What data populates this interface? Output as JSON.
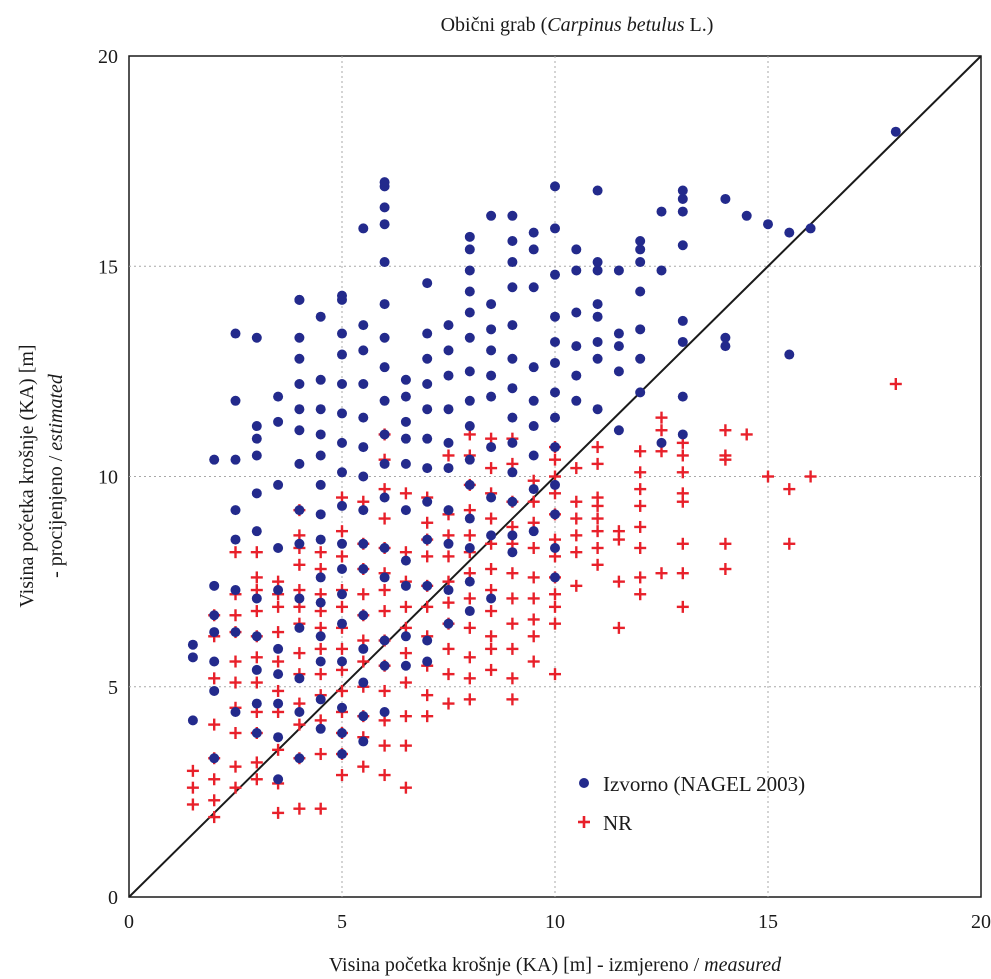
{
  "chart_data": {
    "type": "scatter",
    "title": {
      "plain": "Obični grab (",
      "italic": "Carpinus betulus",
      "suffix": " L.)"
    },
    "xlabel": {
      "plain": "Visina početka krošnje (KA) [m] - izmjereno / ",
      "italic": "measured"
    },
    "ylabel": {
      "line1": "Visina početka krošnje (KA) [m]",
      "line2_plain": "- procijenjeno / ",
      "line2_italic": "estimated"
    },
    "xlim": [
      0,
      20
    ],
    "ylim": [
      0,
      20
    ],
    "xticks": [
      "0",
      "5",
      "10",
      "15",
      "20"
    ],
    "yticks": [
      "0",
      "5",
      "10",
      "15",
      "20"
    ],
    "grid": true,
    "legend_position": "bottom-right",
    "reference_line": {
      "from": [
        0,
        0
      ],
      "to": [
        20,
        20
      ],
      "color": "#1a1a1a"
    },
    "series": [
      {
        "name": "Izvorno (NAGEL 2003)",
        "marker": "circle",
        "color": "#232a8c",
        "x": [
          1.5,
          1.5,
          1.5,
          2,
          2,
          2,
          2,
          2,
          2,
          2,
          2.5,
          2.5,
          2.5,
          2.5,
          2.5,
          2.5,
          2.5,
          2.5,
          3,
          3,
          3,
          3,
          3,
          3,
          3,
          3,
          3,
          3,
          3,
          3.5,
          3.5,
          3.5,
          3.5,
          3.5,
          3.5,
          3.5,
          3.5,
          3.5,
          3.5,
          4,
          4,
          4,
          4,
          4,
          4,
          4,
          4,
          4,
          4,
          4,
          4,
          4,
          4,
          4,
          4.5,
          4.5,
          4.5,
          4.5,
          4.5,
          4.5,
          4.5,
          4.5,
          4.5,
          4.5,
          4.5,
          4.5,
          4.5,
          4.5,
          5,
          5,
          5,
          5,
          5,
          5,
          5,
          5,
          5,
          5,
          5,
          5,
          5,
          5,
          5,
          5,
          5,
          5.5,
          5.5,
          5.5,
          5.5,
          5.5,
          5.5,
          5.5,
          5.5,
          5.5,
          5.5,
          5.5,
          5.5,
          5.5,
          5.5,
          5.5,
          6,
          6,
          6,
          6,
          6,
          6,
          6,
          6,
          6,
          6,
          6,
          6,
          6,
          6,
          6,
          6,
          6,
          6.5,
          6.5,
          6.5,
          6.5,
          6.5,
          6.5,
          6.5,
          6.5,
          6.5,
          6.5,
          7,
          7,
          7,
          7,
          7,
          7,
          7,
          7,
          7,
          7,
          7,
          7,
          7.5,
          7.5,
          7.5,
          7.5,
          7.5,
          7.5,
          7.5,
          7.5,
          7.5,
          7.5,
          8,
          8,
          8,
          8,
          8,
          8,
          8,
          8,
          8,
          8,
          8,
          8,
          8,
          8,
          8,
          8.5,
          8.5,
          8.5,
          8.5,
          8.5,
          8.5,
          8.5,
          8.5,
          8.5,
          8.5,
          9,
          9,
          9,
          9,
          9,
          9,
          9,
          9,
          9,
          9,
          9,
          9,
          9,
          9.5,
          9.5,
          9.5,
          9.5,
          9.5,
          9.5,
          9.5,
          9.5,
          9.5,
          10,
          10,
          10,
          10,
          10,
          10,
          10,
          10,
          10,
          10,
          10,
          10,
          10,
          10.5,
          10.5,
          10.5,
          10.5,
          10.5,
          10.5,
          11,
          11,
          11,
          11,
          11,
          11,
          11,
          11,
          11.5,
          11.5,
          11.5,
          11.5,
          11.5,
          12,
          12,
          12,
          12,
          12,
          12,
          12,
          12.5,
          12.5,
          12.5,
          13,
          13,
          13,
          13,
          13,
          13,
          13,
          13,
          14,
          14,
          14,
          14.5,
          15,
          15.5,
          15.5,
          16,
          18
        ],
        "y": [
          4.2,
          5.7,
          6,
          3.3,
          4.9,
          5.6,
          6.3,
          6.7,
          7.4,
          10.4,
          4.4,
          6.3,
          7.3,
          8.5,
          9.2,
          10.4,
          11.8,
          13.4,
          3.9,
          4.6,
          5.4,
          6.2,
          7.1,
          8.7,
          9.6,
          10.5,
          10.9,
          11.2,
          13.3,
          2.8,
          3.8,
          4.6,
          5.3,
          5.9,
          7.3,
          8.3,
          9.8,
          11.3,
          11.9,
          3.3,
          4.4,
          5.2,
          6.4,
          7.1,
          8.4,
          9.2,
          10.3,
          11.1,
          11.6,
          12.2,
          12.8,
          13.3,
          14.2,
          14.2,
          4,
          4.7,
          5.6,
          6.2,
          7,
          7.6,
          8.5,
          9.1,
          9.8,
          10.5,
          11,
          11.6,
          12.3,
          13.8,
          3.4,
          3.9,
          4.5,
          5.6,
          6.5,
          7.2,
          7.8,
          8.4,
          9.3,
          10.1,
          10.8,
          11.5,
          12.2,
          12.9,
          13.4,
          14.2,
          14.3,
          3.7,
          4.3,
          5.1,
          5.9,
          6.7,
          7.8,
          8.4,
          9.2,
          10,
          10.7,
          11.4,
          12.2,
          13,
          13.6,
          15.9,
          4.4,
          5.5,
          6.1,
          7.6,
          8.3,
          9.5,
          10.3,
          11,
          11.8,
          12.6,
          13.3,
          14.1,
          15.1,
          16,
          16.4,
          16.9,
          17,
          5.5,
          6.2,
          7.4,
          8,
          9.2,
          10.3,
          10.9,
          11.3,
          11.9,
          12.3,
          5.6,
          6.1,
          7.4,
          8.5,
          9.4,
          10.2,
          10.9,
          11.6,
          12.2,
          12.8,
          13.4,
          14.6,
          6.5,
          7.3,
          8.4,
          9.2,
          10.2,
          10.8,
          11.6,
          12.4,
          13,
          13.6,
          6.8,
          7.5,
          8.3,
          9,
          9.8,
          10.4,
          11.2,
          11.8,
          12.5,
          13.3,
          13.9,
          14.4,
          14.9,
          15.4,
          15.7,
          7.1,
          8.6,
          9.5,
          10.7,
          11.9,
          12.4,
          13,
          13.5,
          14.1,
          16.2,
          8.2,
          8.6,
          9.4,
          10.1,
          10.8,
          11.4,
          12.1,
          12.8,
          13.6,
          14.5,
          15.1,
          15.6,
          16.2,
          8.7,
          9.7,
          10.5,
          11.2,
          11.8,
          12.6,
          14.5,
          15.4,
          15.8,
          7.6,
          8.3,
          9.1,
          9.8,
          10.7,
          11.4,
          12,
          12.7,
          13.2,
          13.8,
          14.8,
          15.9,
          16.9,
          11.8,
          12.4,
          13.1,
          13.9,
          14.9,
          15.4,
          11.6,
          12.8,
          13.2,
          13.8,
          14.1,
          14.9,
          15.1,
          16.8,
          11.1,
          12.5,
          13.1,
          13.4,
          14.9,
          12,
          12.8,
          13.5,
          14.4,
          15.1,
          15.4,
          15.6,
          10.8,
          14.9,
          16.3,
          11,
          11.9,
          13.2,
          13.7,
          15.5,
          16.3,
          16.6,
          16.8,
          13.1,
          13.3,
          16.6,
          16.2,
          16,
          12.9,
          15.8,
          15.9,
          18.2
        ]
      },
      {
        "name": "NR",
        "marker": "plus",
        "color": "#e8202a",
        "x": [
          1.5,
          1.5,
          1.5,
          2,
          2,
          2,
          2,
          2,
          2,
          2,
          2,
          2.5,
          2.5,
          2.5,
          2.5,
          2.5,
          2.5,
          2.5,
          2.5,
          2.5,
          2.5,
          3,
          3,
          3,
          3,
          3,
          3,
          3,
          3,
          3,
          3,
          3,
          3.5,
          3.5,
          3.5,
          3.5,
          3.5,
          3.5,
          3.5,
          3.5,
          3.5,
          3.5,
          4,
          4,
          4,
          4,
          4,
          4,
          4,
          4,
          4,
          4,
          4,
          4,
          4,
          4.5,
          4.5,
          4.5,
          4.5,
          4.5,
          4.5,
          4.5,
          4.5,
          4.5,
          4.5,
          4.5,
          5,
          5,
          5,
          5,
          5,
          5,
          5,
          5,
          5,
          5,
          5,
          5,
          5,
          5.5,
          5.5,
          5.5,
          5.5,
          5.5,
          5.5,
          5.5,
          5.5,
          5.5,
          5.5,
          5.5,
          6,
          6,
          6,
          6,
          6,
          6,
          6,
          6,
          6,
          6,
          6,
          6,
          6,
          6,
          6.5,
          6.5,
          6.5,
          6.5,
          6.5,
          6.5,
          6.5,
          6.5,
          6.5,
          6.5,
          7,
          7,
          7,
          7,
          7,
          7,
          7,
          7,
          7,
          7,
          7.5,
          7.5,
          7.5,
          7.5,
          7.5,
          7.5,
          7.5,
          7.5,
          7.5,
          7.5,
          8,
          8,
          8,
          8,
          8,
          8,
          8,
          8,
          8,
          8,
          8,
          8,
          8.5,
          8.5,
          8.5,
          8.5,
          8.5,
          8.5,
          8.5,
          8.5,
          8.5,
          8.5,
          8.5,
          9,
          9,
          9,
          9,
          9,
          9,
          9,
          9,
          9,
          9,
          9,
          9.5,
          9.5,
          9.5,
          9.5,
          9.5,
          9.5,
          9.5,
          9.5,
          9.5,
          10,
          10,
          10,
          10,
          10,
          10,
          10,
          10,
          10,
          10,
          10,
          10,
          10.5,
          10.5,
          10.5,
          10.5,
          10.5,
          10.5,
          11,
          11,
          11,
          11,
          11,
          11,
          11,
          11,
          11.5,
          11.5,
          11.5,
          11.5,
          12,
          12,
          12,
          12,
          12,
          12,
          12,
          12,
          12.5,
          12.5,
          12.5,
          12.5,
          13,
          13,
          13,
          13,
          13,
          13,
          13,
          13,
          14,
          14,
          14,
          14,
          14,
          14.5,
          15,
          15.5,
          15.5,
          16,
          18
        ],
        "y": [
          2.2,
          2.6,
          3,
          1.9,
          2.3,
          2.8,
          3.3,
          4.1,
          5.2,
          6.2,
          6.7,
          2.6,
          3.1,
          3.9,
          4.5,
          5.1,
          5.6,
          6.3,
          6.7,
          7.2,
          8.2,
          2.8,
          3.2,
          3.9,
          4.4,
          5.1,
          5.7,
          6.2,
          6.8,
          7.3,
          7.6,
          8.2,
          2,
          2.7,
          3.5,
          4.4,
          4.9,
          5.6,
          6.3,
          6.9,
          7.2,
          7.5,
          2.1,
          3.3,
          4.1,
          4.6,
          5.3,
          5.8,
          6.5,
          6.9,
          7.3,
          7.9,
          8.3,
          8.6,
          9.2,
          2.1,
          3.4,
          4.2,
          4.8,
          5.3,
          5.9,
          6.4,
          6.8,
          7.2,
          7.8,
          8.2,
          2.9,
          3.4,
          3.9,
          4.4,
          4.9,
          5.4,
          5.9,
          6.4,
          6.9,
          7.3,
          8.1,
          8.7,
          9.5,
          3.1,
          3.8,
          4.3,
          5,
          5.6,
          6.1,
          6.7,
          7.2,
          7.8,
          8.4,
          9.4,
          2.9,
          3.6,
          4.2,
          4.9,
          5.5,
          6.1,
          6.8,
          7.3,
          7.7,
          8.3,
          9,
          9.7,
          10.4,
          11,
          2.6,
          3.6,
          4.3,
          5.1,
          5.8,
          6.4,
          6.9,
          7.5,
          8.2,
          9.6,
          4.3,
          4.8,
          5.5,
          6.2,
          6.9,
          7.4,
          8.1,
          8.5,
          8.9,
          9.5,
          4.6,
          5.3,
          5.9,
          6.5,
          7,
          7.5,
          8.1,
          8.6,
          9.1,
          10.5,
          4.7,
          5.2,
          5.7,
          6.4,
          7.1,
          7.7,
          8.2,
          8.6,
          9.2,
          9.8,
          10.5,
          11,
          5.4,
          5.9,
          6.2,
          6.8,
          7.3,
          7.8,
          8.4,
          9,
          9.6,
          10.2,
          10.9,
          4.7,
          5.2,
          5.9,
          6.5,
          7.1,
          7.7,
          8.4,
          8.8,
          9.4,
          10.3,
          10.9,
          5.6,
          6.2,
          6.6,
          7.1,
          7.6,
          8.3,
          8.9,
          9.4,
          9.9,
          5.3,
          6.5,
          6.9,
          7.2,
          7.6,
          8.1,
          8.5,
          9.1,
          9.6,
          10,
          10.4,
          10.7,
          7.4,
          8.2,
          8.6,
          9,
          9.4,
          10.2,
          7.9,
          8.3,
          8.7,
          9,
          9.3,
          9.5,
          10.3,
          10.7,
          6.4,
          7.5,
          8.5,
          8.7,
          7.2,
          7.6,
          8.3,
          8.8,
          9.3,
          9.7,
          10.1,
          10.6,
          7.7,
          10.6,
          11.1,
          11.4,
          6.9,
          7.7,
          8.4,
          9.4,
          9.6,
          10.1,
          10.5,
          10.8,
          7.8,
          8.4,
          10.4,
          10.5,
          11.1,
          11,
          10,
          8.4,
          9.7,
          10,
          12.2
        ]
      }
    ]
  }
}
